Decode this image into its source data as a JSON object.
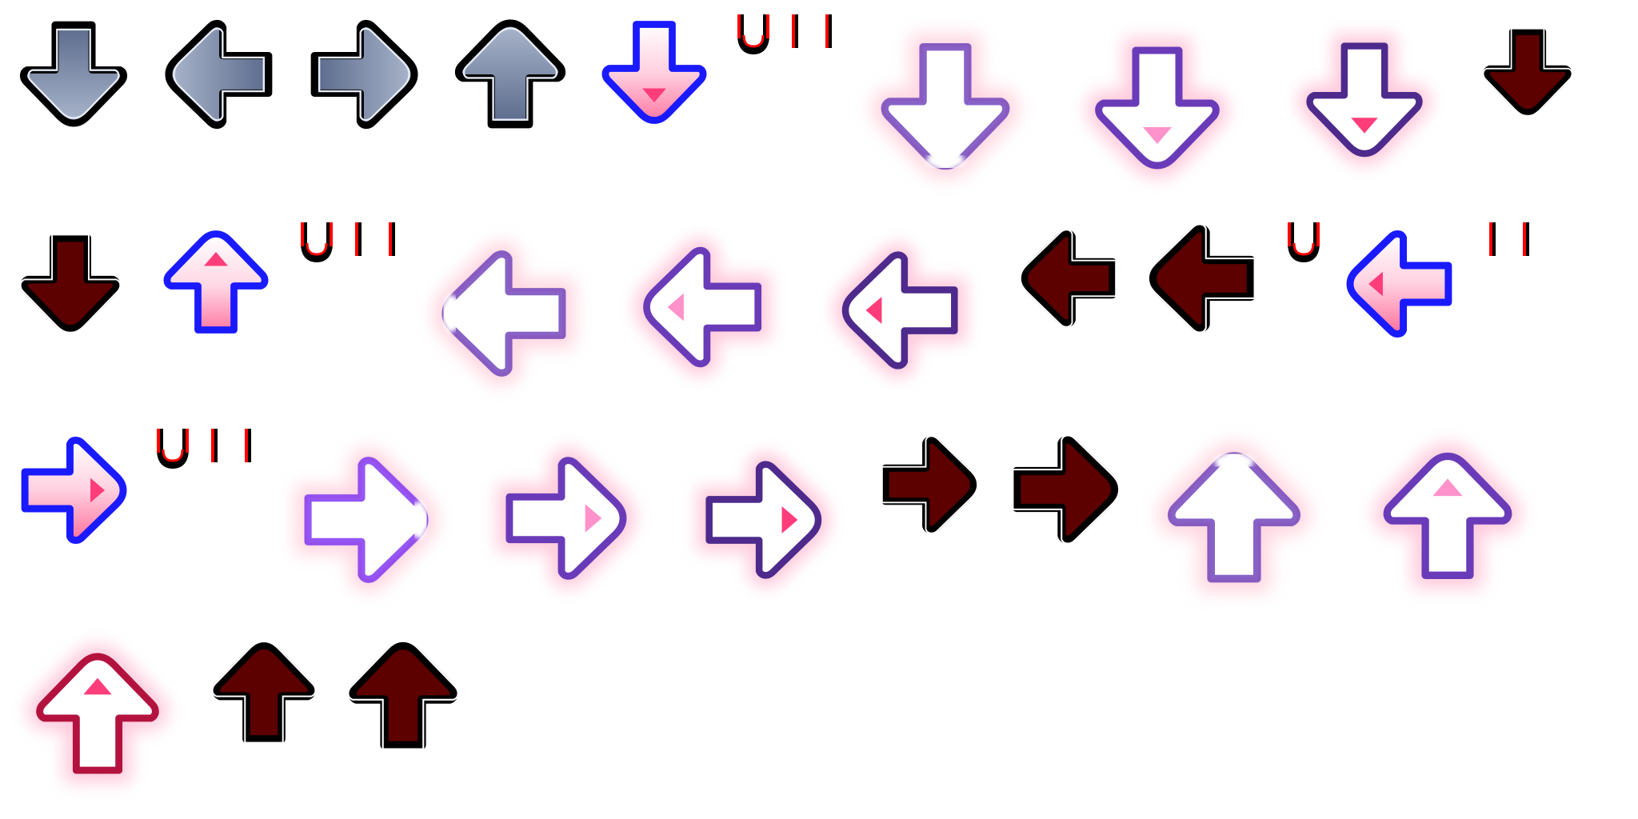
{
  "sheet": {
    "name": "note-arrow-sprite-atlas",
    "background": "#ffffff"
  },
  "palette": {
    "gray_fill_top": "#a4b1c9",
    "gray_fill_bottom": "#5e6d8f",
    "gray_inner_rim": "#e6ecf6",
    "outline_black": "#000000",
    "receptor_blue": "#1a1aff",
    "press_purple": "#6a3bb8",
    "confirm_purple": "#4d2a8c",
    "note_maroon": "#5c0000",
    "arrow_pink": "#ff3d7a",
    "hold_end_red": "#ff0000",
    "crimson_up": "#b3123f"
  },
  "rows": [
    {
      "name": "down-row",
      "sprites": [
        {
          "name": "static-down-arrow",
          "direction": "down",
          "style": "static",
          "tint": "gray"
        },
        {
          "name": "static-left-arrow",
          "direction": "left",
          "style": "static",
          "tint": "gray"
        },
        {
          "name": "static-right-arrow",
          "direction": "right",
          "style": "static",
          "tint": "gray"
        },
        {
          "name": "static-up-arrow",
          "direction": "up",
          "style": "static",
          "tint": "gray"
        },
        {
          "name": "down-note-arrow",
          "direction": "down",
          "style": "note",
          "tint": "blue"
        },
        {
          "name": "down-hold-end-pieces",
          "style": "hold-pieces"
        },
        {
          "name": "down-press-glow-1",
          "direction": "down",
          "style": "press",
          "frame": 1
        },
        {
          "name": "down-press-glow-2",
          "direction": "down",
          "style": "press",
          "frame": 2
        },
        {
          "name": "down-press-glow-3",
          "direction": "down",
          "style": "press",
          "frame": 3
        },
        {
          "name": "down-maroon-small",
          "direction": "down",
          "style": "dark",
          "tint": "maroon"
        }
      ]
    },
    {
      "name": "left-row",
      "sprites": [
        {
          "name": "down-maroon-large",
          "direction": "down",
          "style": "dark",
          "tint": "maroon"
        },
        {
          "name": "up-note-arrow-blue",
          "direction": "up",
          "style": "note",
          "tint": "blue"
        },
        {
          "name": "up-hold-end-pieces",
          "style": "hold-pieces"
        },
        {
          "name": "left-press-glow-1",
          "direction": "left",
          "style": "press",
          "frame": 1
        },
        {
          "name": "left-press-glow-2",
          "direction": "left",
          "style": "press",
          "frame": 2
        },
        {
          "name": "left-press-glow-3",
          "direction": "left",
          "style": "press",
          "frame": 3
        },
        {
          "name": "left-maroon-small",
          "direction": "left",
          "style": "dark",
          "tint": "maroon"
        },
        {
          "name": "left-maroon-large",
          "direction": "left",
          "style": "dark",
          "tint": "maroon"
        },
        {
          "name": "left-hold-end-piece",
          "style": "hold-piece"
        },
        {
          "name": "left-note-arrow",
          "direction": "left",
          "style": "note",
          "tint": "blue"
        },
        {
          "name": "left-hold-pieces",
          "style": "hold-pieces"
        }
      ]
    },
    {
      "name": "right-row",
      "sprites": [
        {
          "name": "right-note-arrow",
          "direction": "right",
          "style": "note",
          "tint": "blue"
        },
        {
          "name": "right-hold-end-pieces",
          "style": "hold-pieces"
        },
        {
          "name": "right-press-glow-1",
          "direction": "right",
          "style": "press",
          "frame": 1
        },
        {
          "name": "right-press-glow-2",
          "direction": "right",
          "style": "press",
          "frame": 2
        },
        {
          "name": "right-press-glow-3",
          "direction": "right",
          "style": "press",
          "frame": 3
        },
        {
          "name": "right-maroon-small",
          "direction": "right",
          "style": "dark",
          "tint": "maroon"
        },
        {
          "name": "right-maroon-large",
          "direction": "right",
          "style": "dark",
          "tint": "maroon"
        },
        {
          "name": "up-press-glow-1",
          "direction": "up",
          "style": "press",
          "frame": 1
        },
        {
          "name": "up-press-glow-2",
          "direction": "up",
          "style": "press",
          "frame": 2
        }
      ]
    },
    {
      "name": "up-row",
      "sprites": [
        {
          "name": "up-press-glow-3",
          "direction": "up",
          "style": "press",
          "frame": 3,
          "tint": "crimson"
        },
        {
          "name": "up-maroon-small",
          "direction": "up",
          "style": "dark",
          "tint": "maroon"
        },
        {
          "name": "up-maroon-large",
          "direction": "up",
          "style": "dark",
          "tint": "maroon"
        }
      ]
    }
  ]
}
